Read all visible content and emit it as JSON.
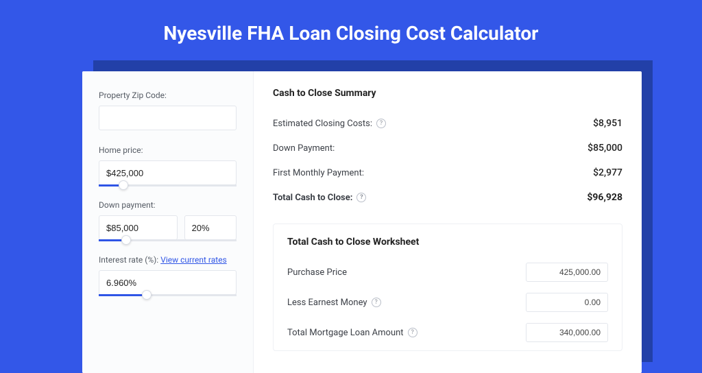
{
  "colors": {
    "page_bg": "#3357e8",
    "shadow_bg": "#2240a8",
    "card_bg": "#ffffff",
    "left_bg": "#fbfcfd",
    "border": "#e3e6ec",
    "accent": "#2f55e6",
    "text": "#222222",
    "muted": "#555b64"
  },
  "title": "Nyesville FHA Loan Closing Cost Calculator",
  "inputs": {
    "zip": {
      "label": "Property Zip Code:",
      "value": ""
    },
    "home_price": {
      "label": "Home price:",
      "value": "$425,000",
      "slider_pct": 18
    },
    "down_payment": {
      "label": "Down payment:",
      "amount": "$85,000",
      "percent": "20%",
      "slider_pct": 20
    },
    "interest_rate": {
      "label": "Interest rate (%):",
      "link_text": "View current rates",
      "value": "6.960%",
      "slider_pct": 35
    }
  },
  "summary": {
    "title": "Cash to Close Summary",
    "rows": [
      {
        "label": "Estimated Closing Costs:",
        "help": true,
        "value": "$8,951"
      },
      {
        "label": "Down Payment:",
        "help": false,
        "value": "$85,000"
      },
      {
        "label": "First Monthly Payment:",
        "help": false,
        "value": "$2,977"
      }
    ],
    "total": {
      "label": "Total Cash to Close:",
      "help": true,
      "value": "$96,928"
    }
  },
  "worksheet": {
    "title": "Total Cash to Close Worksheet",
    "rows": [
      {
        "label": "Purchase Price",
        "help": false,
        "value": "425,000.00"
      },
      {
        "label": "Less Earnest Money",
        "help": true,
        "value": "0.00"
      },
      {
        "label": "Total Mortgage Loan Amount",
        "help": true,
        "value": "340,000.00"
      }
    ]
  }
}
